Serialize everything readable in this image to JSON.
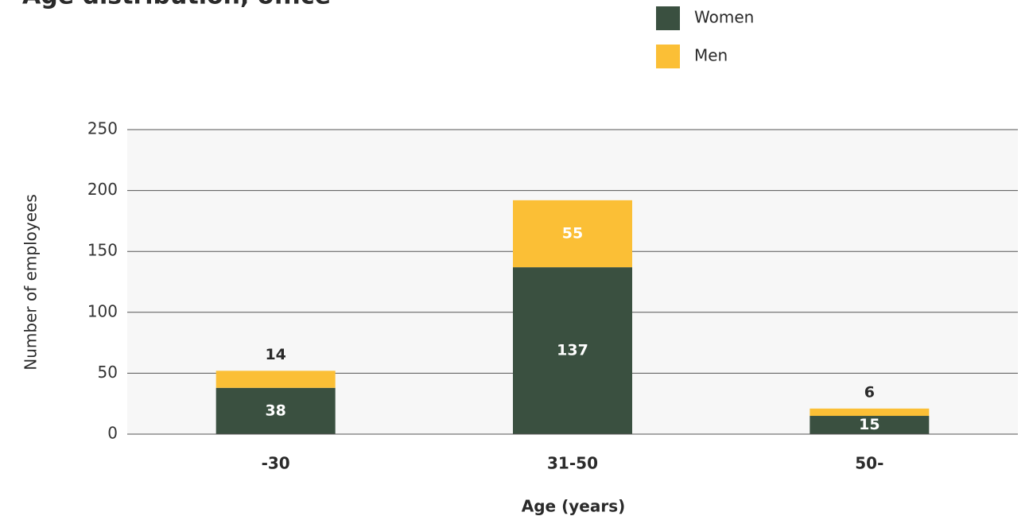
{
  "chart_data": {
    "type": "stacked_bar",
    "title": "Age distribution, office",
    "categories": [
      "-30",
      "31-50",
      "50-"
    ],
    "series": [
      {
        "name": "Women",
        "color": "#3a5040",
        "values": [
          38,
          137,
          15
        ]
      },
      {
        "name": "Men",
        "color": "#fbbf36",
        "values": [
          14,
          55,
          6
        ]
      }
    ],
    "ylim": [
      0,
      250
    ],
    "yticks": [
      0,
      50,
      100,
      150,
      200,
      250
    ],
    "grid": true,
    "y_label": "Number of employees",
    "x_label": "Age (years)",
    "legend": "top-right"
  }
}
